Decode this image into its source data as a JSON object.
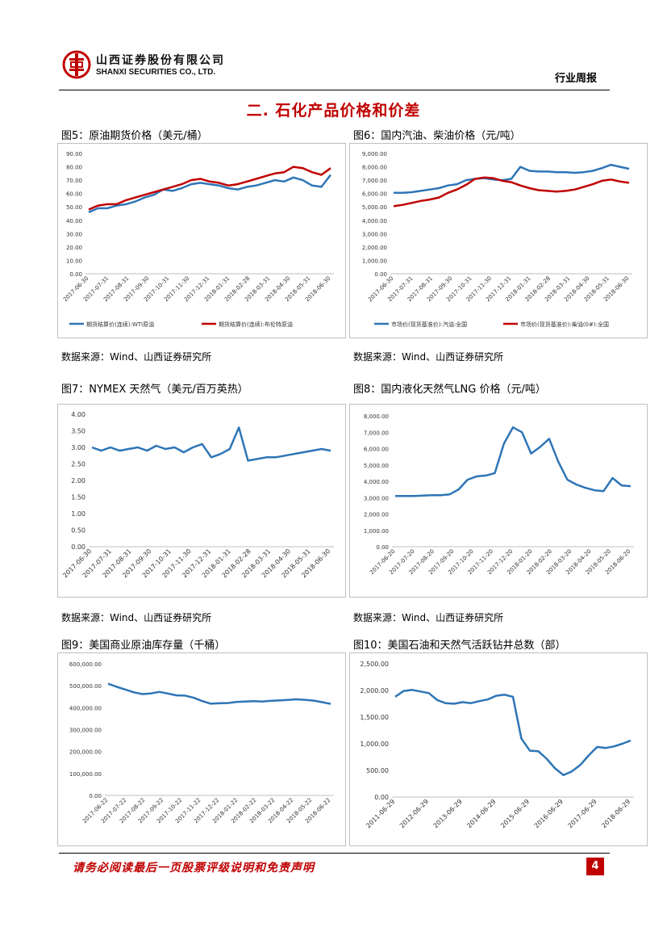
{
  "header": {
    "company_cn": "山西证券股份有限公司",
    "company_en": "SHANXI SECURITIES CO., LTD.",
    "report_type": "行业周报",
    "logo_color": "#c00000"
  },
  "section_title": "二. 石化产品价格和价差",
  "figures": {
    "fig5": {
      "title": "图5：原油期货价格（美元/桶）",
      "source": "数据来源：Wind、山西证券研究所"
    },
    "fig6": {
      "title": "图6：国内汽油、柴油价格（元/吨）",
      "source": "数据来源：Wind、山西证券研究所"
    },
    "fig7": {
      "title": "图7：NYMEX 天然气（美元/百万英热）",
      "source": "数据来源：Wind、山西证券研究所"
    },
    "fig8": {
      "title": "图8：国内液化天然气LNG 价格（元/吨）",
      "source": "数据来源：Wind、山西证券研究所"
    },
    "fig9": {
      "title": "图9：美国商业原油库存量（千桶）"
    },
    "fig10": {
      "title": "图10：美国石油和天然气活跃钻井总数（部）"
    }
  },
  "chart_data": [
    {
      "id": "fig5",
      "type": "line",
      "x_ticks": [
        "2017-06-30",
        "2017-07-31",
        "2017-08-31",
        "2017-09-30",
        "2017-10-31",
        "2017-11-30",
        "2017-12-31",
        "2018-01-31",
        "2018-02-28",
        "2018-03-31",
        "2018-04-30",
        "2018-05-31",
        "2018-06-30"
      ],
      "y_ticks": [
        "0.00",
        "10.00",
        "20.00",
        "30.00",
        "40.00",
        "50.00",
        "60.00",
        "70.00",
        "80.00",
        "90.00"
      ],
      "ylim": [
        0,
        90
      ],
      "series": [
        {
          "name": "期货结算价(连续):WTI原油",
          "color": "#2e75b6",
          "values": [
            46,
            49,
            49,
            51,
            52,
            54,
            57,
            59,
            63,
            62,
            64,
            67,
            68,
            67,
            66,
            64,
            63,
            65,
            66,
            68,
            70,
            69,
            72,
            70,
            66,
            65,
            74
          ]
        },
        {
          "name": "期货结算价(连续):布伦特原油",
          "color": "#c00000",
          "values": [
            48,
            51,
            52,
            52,
            55,
            57,
            59,
            61,
            63,
            65,
            67,
            70,
            71,
            69,
            68,
            66,
            67,
            69,
            71,
            73,
            75,
            76,
            80,
            79,
            76,
            74,
            79
          ]
        }
      ],
      "legend_position": "bottom"
    },
    {
      "id": "fig6",
      "type": "line",
      "x_ticks": [
        "2017-06-30",
        "2017-07-31",
        "2017-08-31",
        "2017-09-30",
        "2017-10-31",
        "2017-11-30",
        "2017-12-31",
        "2018-01-31",
        "2018-02-28",
        "2018-03-31",
        "2018-04-30",
        "2018-05-31",
        "2018-06-30"
      ],
      "y_ticks": [
        "0.00",
        "1,000.00",
        "2,000.00",
        "3,000.00",
        "4,000.00",
        "5,000.00",
        "6,000.00",
        "7,000.00",
        "8,000.00",
        "9,000.00"
      ],
      "ylim": [
        0,
        9000
      ],
      "series": [
        {
          "name": "市场价(现货基准价):汽油:全国",
          "color": "#2e75b6",
          "values": [
            6050,
            6050,
            6100,
            6200,
            6300,
            6400,
            6600,
            6700,
            7000,
            7100,
            7150,
            7050,
            7000,
            7100,
            8000,
            7700,
            7650,
            7650,
            7600,
            7600,
            7550,
            7600,
            7700,
            7900,
            8150,
            8000,
            7850
          ]
        },
        {
          "name": "市场价(现货基准价):柴油(0#):全国",
          "color": "#c00000",
          "values": [
            5050,
            5150,
            5300,
            5450,
            5550,
            5700,
            6050,
            6300,
            6650,
            7100,
            7200,
            7150,
            6950,
            6850,
            6600,
            6400,
            6250,
            6200,
            6150,
            6200,
            6300,
            6500,
            6700,
            6950,
            7050,
            6900,
            6800
          ]
        }
      ],
      "legend_position": "bottom"
    },
    {
      "id": "fig7",
      "type": "line",
      "x_ticks": [
        "2017-06-30",
        "2017-07-31",
        "2017-08-31",
        "2017-09-30",
        "2017-10-31",
        "2017-11-30",
        "2017-12-31",
        "2018-01-31",
        "2018-02-28",
        "2018-03-31",
        "2018-04-30",
        "2018-05-31",
        "2018-06-30"
      ],
      "y_ticks": [
        "0.00",
        "0.50",
        "1.00",
        "1.50",
        "2.00",
        "2.50",
        "3.00",
        "3.50",
        "4.00"
      ],
      "ylim": [
        0,
        4
      ],
      "series": [
        {
          "name": "NYMEX天然气",
          "color": "#2e75b6",
          "values": [
            3.0,
            2.9,
            3.0,
            2.9,
            2.95,
            3.0,
            2.9,
            3.05,
            2.95,
            3.0,
            2.85,
            3.0,
            3.1,
            2.7,
            2.8,
            2.95,
            3.6,
            2.6,
            2.65,
            2.7,
            2.7,
            2.75,
            2.8,
            2.85,
            2.9,
            2.95,
            2.9
          ]
        }
      ]
    },
    {
      "id": "fig8",
      "type": "line",
      "x_ticks": [
        "2017-06-20",
        "2017-07-20",
        "2017-08-20",
        "2017-09-20",
        "2017-10-20",
        "2017-11-20",
        "2017-12-20",
        "2018-01-20",
        "2018-02-20",
        "2018-03-20",
        "2018-04-20",
        "2018-05-20",
        "2018-06-20"
      ],
      "y_ticks": [
        "0.00",
        "1,000.00",
        "2,000.00",
        "3,000.00",
        "4,000.00",
        "5,000.00",
        "6,000.00",
        "7,000.00",
        "8,000.00"
      ],
      "ylim": [
        0,
        8000
      ],
      "series": [
        {
          "name": "LNG价格",
          "color": "#2e75b6",
          "values": [
            3100,
            3100,
            3100,
            3120,
            3150,
            3150,
            3200,
            3500,
            4100,
            4300,
            4350,
            4500,
            6300,
            7300,
            7000,
            5700,
            6100,
            6600,
            5200,
            4100,
            3800,
            3600,
            3450,
            3400,
            4200,
            3750,
            3700
          ]
        }
      ]
    },
    {
      "id": "fig9",
      "type": "line",
      "x_ticks": [
        "2017-06-22",
        "2017-07-22",
        "2017-08-22",
        "2017-09-22",
        "2017-10-22",
        "2017-11-22",
        "2017-12-22",
        "2018-01-22",
        "2018-02-22",
        "2018-03-22",
        "2018-04-22",
        "2018-05-22",
        "2018-06-22"
      ],
      "y_ticks": [
        "0.00",
        "100,000.00",
        "200,000.00",
        "300,000.00",
        "400,000.00",
        "500,000.00",
        "600,000.00"
      ],
      "ylim": [
        0,
        600000
      ],
      "series": [
        {
          "name": "美国商业原油库存",
          "color": "#2e75b6",
          "values": [
            509000,
            495000,
            483000,
            470000,
            462000,
            465000,
            472000,
            464000,
            456000,
            455000,
            445000,
            430000,
            418000,
            420000,
            421000,
            426000,
            428000,
            430000,
            428000,
            431000,
            433000,
            435000,
            438000,
            436000,
            432000,
            425000,
            417000
          ]
        }
      ]
    },
    {
      "id": "fig10",
      "type": "line",
      "x_ticks": [
        "2011-06-29",
        "2012-06-29",
        "2013-06-29",
        "2014-06-29",
        "2015-06-29",
        "2016-06-29",
        "2017-06-29",
        "2018-06-29"
      ],
      "y_ticks": [
        "0.00",
        "500.00",
        "1,000.00",
        "1,500.00",
        "2,000.00",
        "2,500.00"
      ],
      "ylim": [
        0,
        2500
      ],
      "series": [
        {
          "name": "活跃钻井总数",
          "color": "#2e75b6",
          "values": [
            1880,
            1990,
            2010,
            1980,
            1950,
            1820,
            1760,
            1750,
            1780,
            1760,
            1800,
            1830,
            1900,
            1920,
            1880,
            1100,
            870,
            860,
            720,
            540,
            410,
            480,
            600,
            780,
            940,
            920,
            950,
            1000,
            1060
          ]
        }
      ]
    }
  ],
  "footer": {
    "disclaimer": "请务必阅读最后一页股票评级说明和免责声明",
    "page_number": "4"
  }
}
